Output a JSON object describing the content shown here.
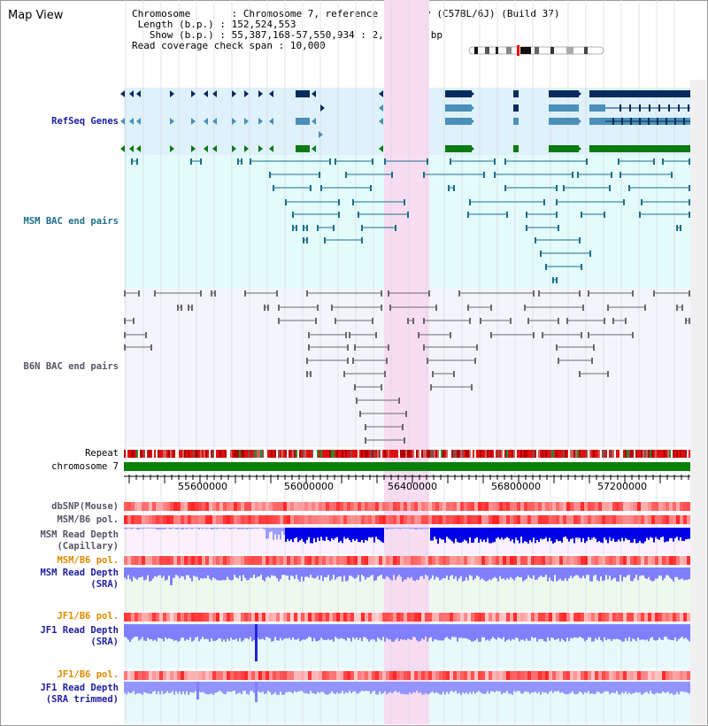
{
  "header": {
    "title": "Map View",
    "chromosome_label": "Chromosome",
    "chromosome_value": "Chromosome 7, reference assembly (C57BL/6J) (Build 37)",
    "length_label": "Length (b.p.)",
    "length_value": "152,524,553",
    "show_label": "Show (b.p.)",
    "show_value": "55,387,168-57,550,934 : 2,163,767 bp",
    "coverage_label": "Read coverage check span",
    "coverage_value": "10,000"
  },
  "tracks": {
    "refseq": "RefSeq Genes",
    "msm_bac": "MSM BAC end pairs",
    "b6n_bac": "B6N BAC end pairs",
    "repeat": "Repeat",
    "chromosome": "chromosome 7",
    "dbsnp": "dbSNP(Mouse)",
    "msm_b6_pol_1": "MSM/B6 pol.",
    "msm_read_depth_cap_1": "MSM Read Depth",
    "msm_read_depth_cap_2": "(Capillary)",
    "msm_b6_pol_2": "MSM/B6 pol.",
    "msm_read_depth_sra_1": "MSM Read Depth",
    "msm_read_depth_sra_2": "(SRA)",
    "jf1_b6_pol_1": "JF1/B6 pol.",
    "jf1_read_depth_sra_1": "JF1 Read Depth",
    "jf1_read_depth_sra_2": "(SRA)",
    "jf1_b6_pol_2": "JF1/B6 pol.",
    "jf1_read_depth_trim_1": "JF1 Read Depth",
    "jf1_read_depth_trim_2": "(SRA trimmed)"
  },
  "axis": {
    "ticks": [
      "55600000",
      "56000000",
      "56400000",
      "56800000",
      "57200000"
    ]
  },
  "colors": {
    "refseq_bg": "#dff1fb",
    "msm_bg": "#e3fbfb",
    "b6n_bg": "#f4f5fa",
    "highlight": "#f8dcf2",
    "navy": "#0a2a5e",
    "teal_gene": "#4a90b8",
    "green_gene": "#0b7a13",
    "msm_line": "#1c6f8b",
    "b6n_line": "#6a6a6a",
    "chrom_green": "#0a7f0a",
    "depth_blue": "#8080ff",
    "depth_dark": "#0000e6",
    "label_navy": "#1e1ea0",
    "label_teal": "#1e6e8c",
    "label_gray": "#555566",
    "label_orange": "#e08a00"
  }
}
